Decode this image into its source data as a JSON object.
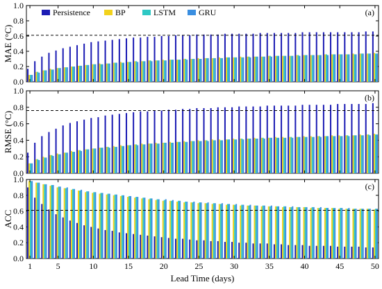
{
  "chart_data": {
    "type": "bar",
    "xlabel": "Lead Time (days)",
    "x_ticks": [
      1,
      5,
      10,
      15,
      20,
      25,
      30,
      35,
      40,
      45,
      50
    ],
    "x": [
      1,
      2,
      3,
      4,
      5,
      6,
      7,
      8,
      9,
      10,
      11,
      12,
      13,
      14,
      15,
      16,
      17,
      18,
      19,
      20,
      21,
      22,
      23,
      24,
      25,
      26,
      27,
      28,
      29,
      30,
      31,
      32,
      33,
      34,
      35,
      36,
      37,
      38,
      39,
      40,
      41,
      42,
      43,
      44,
      45,
      46,
      47,
      48,
      49,
      50
    ],
    "legend": {
      "placement": "top-left",
      "items": [
        {
          "name": "Persistence",
          "color": "#1c1cb4"
        },
        {
          "name": "BP",
          "color": "#f2d21c"
        },
        {
          "name": "LSTM",
          "color": "#2ec8c4"
        },
        {
          "name": "GRU",
          "color": "#3a8ee0"
        }
      ]
    },
    "panels": [
      {
        "tag": "(a)",
        "ylabel": "MAE (°C)",
        "ylim": [
          0,
          1
        ],
        "yticks": [
          "0.0",
          "0.2",
          "0.4",
          "0.6",
          "0.8",
          "1.0"
        ],
        "reference_line": 0.61,
        "series": [
          {
            "name": "Persistence",
            "values": [
              0.17,
              0.27,
              0.33,
              0.38,
              0.41,
              0.44,
              0.46,
              0.48,
              0.5,
              0.52,
              0.53,
              0.54,
              0.55,
              0.56,
              0.57,
              0.58,
              0.58,
              0.59,
              0.59,
              0.6,
              0.6,
              0.61,
              0.61,
              0.61,
              0.62,
              0.62,
              0.62,
              0.62,
              0.63,
              0.63,
              0.63,
              0.63,
              0.63,
              0.64,
              0.64,
              0.64,
              0.64,
              0.64,
              0.64,
              0.65,
              0.65,
              0.65,
              0.65,
              0.65,
              0.65,
              0.65,
              0.65,
              0.65,
              0.66,
              0.66
            ]
          },
          {
            "name": "BP",
            "values": [
              0.09,
              0.13,
              0.15,
              0.17,
              0.18,
              0.19,
              0.2,
              0.21,
              0.22,
              0.23,
              0.24,
              0.24,
              0.25,
              0.26,
              0.26,
              0.27,
              0.27,
              0.28,
              0.28,
              0.29,
              0.29,
              0.29,
              0.3,
              0.3,
              0.31,
              0.31,
              0.31,
              0.32,
              0.32,
              0.32,
              0.33,
              0.33,
              0.33,
              0.33,
              0.34,
              0.34,
              0.34,
              0.34,
              0.35,
              0.35,
              0.35,
              0.35,
              0.36,
              0.36,
              0.36,
              0.36,
              0.37,
              0.37,
              0.37,
              0.38
            ]
          },
          {
            "name": "LSTM",
            "values": [
              0.09,
              0.13,
              0.15,
              0.16,
              0.18,
              0.19,
              0.2,
              0.21,
              0.22,
              0.23,
              0.23,
              0.24,
              0.25,
              0.25,
              0.26,
              0.27,
              0.27,
              0.28,
              0.28,
              0.28,
              0.29,
              0.29,
              0.3,
              0.3,
              0.3,
              0.31,
              0.31,
              0.31,
              0.32,
              0.32,
              0.32,
              0.33,
              0.33,
              0.33,
              0.34,
              0.34,
              0.34,
              0.34,
              0.35,
              0.35,
              0.35,
              0.35,
              0.36,
              0.36,
              0.36,
              0.36,
              0.36,
              0.37,
              0.37,
              0.37
            ]
          },
          {
            "name": "GRU",
            "values": [
              0.09,
              0.12,
              0.15,
              0.16,
              0.18,
              0.19,
              0.2,
              0.21,
              0.22,
              0.23,
              0.23,
              0.24,
              0.25,
              0.25,
              0.26,
              0.26,
              0.27,
              0.27,
              0.28,
              0.28,
              0.29,
              0.29,
              0.29,
              0.3,
              0.3,
              0.31,
              0.31,
              0.31,
              0.32,
              0.32,
              0.32,
              0.32,
              0.33,
              0.33,
              0.33,
              0.34,
              0.34,
              0.34,
              0.34,
              0.35,
              0.35,
              0.35,
              0.35,
              0.36,
              0.36,
              0.36,
              0.36,
              0.37,
              0.37,
              0.37
            ]
          }
        ]
      },
      {
        "tag": "(b)",
        "ylabel": "RMSE (°C)",
        "ylim": [
          0,
          1
        ],
        "yticks": [
          "0.0",
          "0.2",
          "0.4",
          "0.6",
          "0.8",
          "1.0"
        ],
        "reference_line": 0.76,
        "series": [
          {
            "name": "Persistence",
            "values": [
              0.25,
              0.37,
              0.45,
              0.5,
              0.54,
              0.58,
              0.61,
              0.63,
              0.65,
              0.67,
              0.68,
              0.7,
              0.71,
              0.72,
              0.73,
              0.74,
              0.75,
              0.75,
              0.76,
              0.76,
              0.77,
              0.77,
              0.78,
              0.78,
              0.79,
              0.79,
              0.79,
              0.8,
              0.8,
              0.8,
              0.81,
              0.81,
              0.81,
              0.81,
              0.82,
              0.82,
              0.82,
              0.82,
              0.82,
              0.83,
              0.83,
              0.83,
              0.83,
              0.83,
              0.84,
              0.84,
              0.84,
              0.84,
              0.84,
              0.85
            ]
          },
          {
            "name": "BP",
            "values": [
              0.12,
              0.17,
              0.2,
              0.22,
              0.24,
              0.25,
              0.27,
              0.28,
              0.29,
              0.3,
              0.31,
              0.32,
              0.33,
              0.34,
              0.34,
              0.35,
              0.36,
              0.36,
              0.37,
              0.37,
              0.38,
              0.38,
              0.39,
              0.39,
              0.4,
              0.4,
              0.41,
              0.41,
              0.41,
              0.42,
              0.42,
              0.42,
              0.43,
              0.43,
              0.43,
              0.44,
              0.44,
              0.44,
              0.44,
              0.45,
              0.45,
              0.45,
              0.45,
              0.46,
              0.46,
              0.46,
              0.46,
              0.47,
              0.47,
              0.48
            ]
          },
          {
            "name": "LSTM",
            "values": [
              0.12,
              0.17,
              0.19,
              0.22,
              0.23,
              0.25,
              0.26,
              0.28,
              0.29,
              0.3,
              0.31,
              0.32,
              0.32,
              0.33,
              0.34,
              0.35,
              0.35,
              0.36,
              0.36,
              0.37,
              0.37,
              0.38,
              0.38,
              0.39,
              0.39,
              0.4,
              0.4,
              0.4,
              0.41,
              0.41,
              0.42,
              0.42,
              0.42,
              0.43,
              0.43,
              0.43,
              0.43,
              0.44,
              0.44,
              0.44,
              0.44,
              0.45,
              0.45,
              0.45,
              0.45,
              0.46,
              0.46,
              0.46,
              0.47,
              0.47
            ]
          },
          {
            "name": "GRU",
            "values": [
              0.12,
              0.16,
              0.19,
              0.21,
              0.23,
              0.25,
              0.26,
              0.27,
              0.29,
              0.3,
              0.31,
              0.31,
              0.32,
              0.33,
              0.34,
              0.34,
              0.35,
              0.36,
              0.36,
              0.37,
              0.37,
              0.38,
              0.38,
              0.39,
              0.39,
              0.39,
              0.4,
              0.4,
              0.41,
              0.41,
              0.41,
              0.42,
              0.42,
              0.42,
              0.43,
              0.43,
              0.43,
              0.43,
              0.44,
              0.44,
              0.44,
              0.44,
              0.45,
              0.45,
              0.45,
              0.45,
              0.46,
              0.46,
              0.46,
              0.47
            ]
          }
        ]
      },
      {
        "tag": "(c)",
        "ylabel": "ACC",
        "ylim": [
          0,
          1
        ],
        "yticks": [
          "0.0",
          "0.2",
          "0.4",
          "0.6",
          "0.8",
          "1.0"
        ],
        "reference_line": 0.61,
        "series": [
          {
            "name": "Persistence",
            "values": [
              0.9,
              0.77,
              0.69,
              0.62,
              0.56,
              0.52,
              0.48,
              0.45,
              0.42,
              0.4,
              0.38,
              0.36,
              0.35,
              0.33,
              0.32,
              0.31,
              0.3,
              0.29,
              0.28,
              0.27,
              0.26,
              0.25,
              0.25,
              0.24,
              0.23,
              0.23,
              0.22,
              0.22,
              0.21,
              0.21,
              0.2,
              0.2,
              0.19,
              0.19,
              0.19,
              0.18,
              0.18,
              0.17,
              0.17,
              0.17,
              0.16,
              0.16,
              0.16,
              0.16,
              0.15,
              0.15,
              0.15,
              0.15,
              0.14,
              0.14
            ]
          },
          {
            "name": "BP",
            "values": [
              0.98,
              0.96,
              0.94,
              0.92,
              0.9,
              0.89,
              0.87,
              0.86,
              0.84,
              0.83,
              0.82,
              0.81,
              0.8,
              0.79,
              0.78,
              0.77,
              0.76,
              0.75,
              0.74,
              0.73,
              0.73,
              0.72,
              0.71,
              0.71,
              0.7,
              0.7,
              0.69,
              0.69,
              0.68,
              0.68,
              0.67,
              0.67,
              0.67,
              0.66,
              0.66,
              0.66,
              0.65,
              0.65,
              0.65,
              0.65,
              0.64,
              0.64,
              0.64,
              0.64,
              0.63,
              0.63,
              0.63,
              0.63,
              0.63,
              0.62
            ]
          },
          {
            "name": "LSTM",
            "values": [
              0.98,
              0.96,
              0.94,
              0.93,
              0.91,
              0.89,
              0.88,
              0.86,
              0.85,
              0.84,
              0.83,
              0.82,
              0.81,
              0.8,
              0.79,
              0.78,
              0.77,
              0.76,
              0.75,
              0.74,
              0.73,
              0.73,
              0.72,
              0.71,
              0.71,
              0.7,
              0.7,
              0.69,
              0.69,
              0.68,
              0.68,
              0.67,
              0.67,
              0.67,
              0.66,
              0.66,
              0.66,
              0.65,
              0.65,
              0.65,
              0.65,
              0.64,
              0.64,
              0.64,
              0.64,
              0.63,
              0.63,
              0.63,
              0.63,
              0.63
            ]
          },
          {
            "name": "GRU",
            "values": [
              0.98,
              0.96,
              0.94,
              0.93,
              0.91,
              0.9,
              0.88,
              0.87,
              0.85,
              0.84,
              0.83,
              0.82,
              0.81,
              0.8,
              0.79,
              0.78,
              0.77,
              0.76,
              0.75,
              0.75,
              0.74,
              0.73,
              0.72,
              0.72,
              0.71,
              0.71,
              0.7,
              0.7,
              0.69,
              0.69,
              0.68,
              0.68,
              0.67,
              0.67,
              0.67,
              0.66,
              0.66,
              0.66,
              0.65,
              0.65,
              0.65,
              0.65,
              0.64,
              0.64,
              0.64,
              0.64,
              0.63,
              0.63,
              0.63,
              0.63
            ]
          }
        ]
      }
    ]
  }
}
